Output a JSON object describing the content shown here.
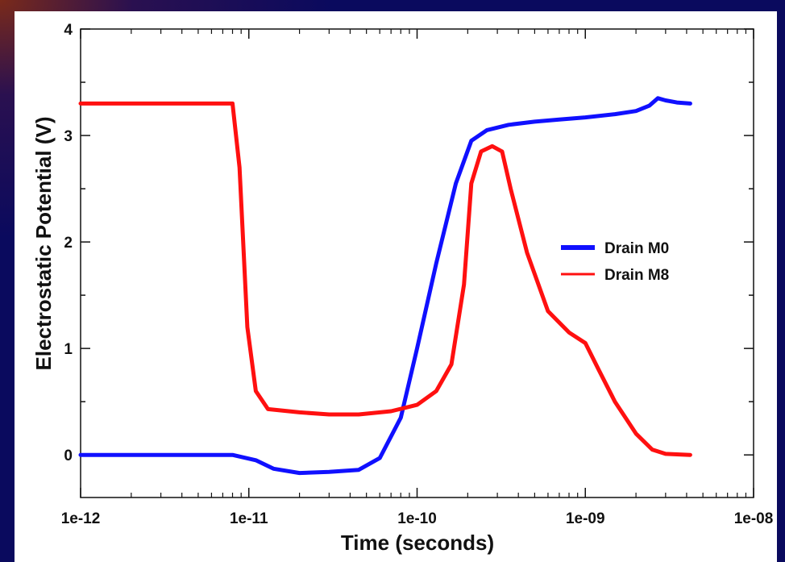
{
  "colors": {
    "background": "#0a0a5e",
    "panel": "#ffffff",
    "series_blue": "#1010ff",
    "series_red": "#ff1010"
  },
  "chart_data": {
    "type": "line",
    "title": "",
    "xlabel": "Time (seconds)",
    "ylabel": "Electrostatic Potential (V)",
    "xscale": "log",
    "xlim": [
      1e-12,
      1e-08
    ],
    "ylim": [
      -0.4,
      4
    ],
    "xtick_labels": [
      "1e-12",
      "1e-11",
      "1e-10",
      "1e-09",
      "1e-08"
    ],
    "ytick_labels": [
      "0",
      "1",
      "2",
      "3",
      "4"
    ],
    "grid": false,
    "legend_position": "right",
    "series": [
      {
        "name": "Drain M0",
        "color": "#1010ff",
        "x": [
          1e-12,
          8e-12,
          1.1e-11,
          1.4e-11,
          2e-11,
          3e-11,
          4.5e-11,
          6e-11,
          8e-11,
          1e-10,
          1.3e-10,
          1.7e-10,
          2.1e-10,
          2.6e-10,
          3.5e-10,
          5e-10,
          7e-10,
          1e-09,
          1.5e-09,
          2e-09,
          2.4e-09,
          2.7e-09,
          3e-09,
          3.5e-09,
          4.2e-09
        ],
        "y": [
          0,
          0,
          -0.05,
          -0.13,
          -0.17,
          -0.16,
          -0.14,
          -0.03,
          0.35,
          1.0,
          1.8,
          2.55,
          2.95,
          3.05,
          3.1,
          3.13,
          3.15,
          3.17,
          3.2,
          3.23,
          3.28,
          3.35,
          3.33,
          3.31,
          3.3
        ]
      },
      {
        "name": "Drain M8",
        "color": "#ff1010",
        "x": [
          1e-12,
          8e-12,
          8.8e-12,
          9.8e-12,
          1.1e-11,
          1.3e-11,
          2e-11,
          3e-11,
          4.5e-11,
          7e-11,
          1e-10,
          1.3e-10,
          1.6e-10,
          1.9e-10,
          2.1e-10,
          2.4e-10,
          2.8e-10,
          3.2e-10,
          3.6e-10,
          4.5e-10,
          6e-10,
          8e-10,
          1e-09,
          1.2e-09,
          1.5e-09,
          2e-09,
          2.5e-09,
          3e-09,
          4.2e-09
        ],
        "y": [
          3.3,
          3.3,
          2.7,
          1.2,
          0.6,
          0.43,
          0.4,
          0.38,
          0.38,
          0.41,
          0.47,
          0.6,
          0.85,
          1.6,
          2.55,
          2.85,
          2.9,
          2.85,
          2.5,
          1.9,
          1.35,
          1.15,
          1.05,
          0.8,
          0.5,
          0.2,
          0.05,
          0.01,
          0.0
        ]
      }
    ]
  }
}
